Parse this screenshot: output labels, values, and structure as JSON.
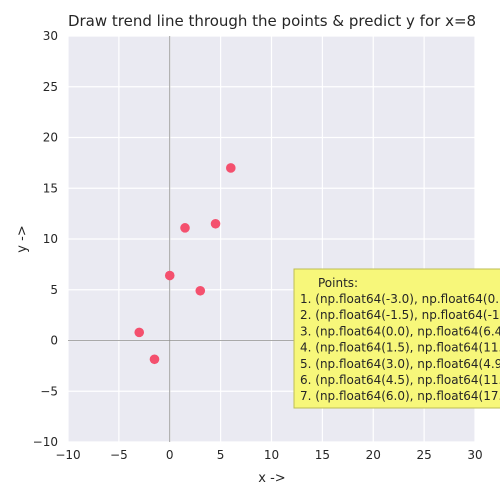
{
  "chart_data": {
    "type": "scatter",
    "title": "Draw trend line through the points & predict y for x=8",
    "xlabel": "x ->",
    "ylabel": "y ->",
    "xlim": [
      -10,
      30
    ],
    "ylim": [
      -10,
      30
    ],
    "xticks": [
      -10,
      -5,
      0,
      5,
      10,
      15,
      20,
      25,
      30
    ],
    "yticks": [
      -10,
      -5,
      0,
      5,
      10,
      15,
      20,
      25,
      30
    ],
    "grid": true,
    "point_color": "#f4506e",
    "points": [
      {
        "x": -3.0,
        "y": 0.8
      },
      {
        "x": -1.5,
        "y": -1.85
      },
      {
        "x": 0.0,
        "y": 6.4
      },
      {
        "x": 1.5,
        "y": 11.1
      },
      {
        "x": 3.0,
        "y": 4.9
      },
      {
        "x": 4.5,
        "y": 11.5
      },
      {
        "x": 6.0,
        "y": 17.0
      }
    ],
    "annotation": {
      "heading": "Points:",
      "lines": [
        "1. (np.float64(-3.0), np.float64(0.",
        "2. (np.float64(-1.5), np.float64(-1",
        "3. (np.float64(0.0), np.float64(6.4",
        "4. (np.float64(1.5), np.float64(11.",
        "5. (np.float64(3.0), np.float64(4.9",
        "6. (np.float64(4.5), np.float64(11.",
        "7. (np.float64(6.0), np.float64(17."
      ],
      "background": "#f7f77a"
    }
  }
}
